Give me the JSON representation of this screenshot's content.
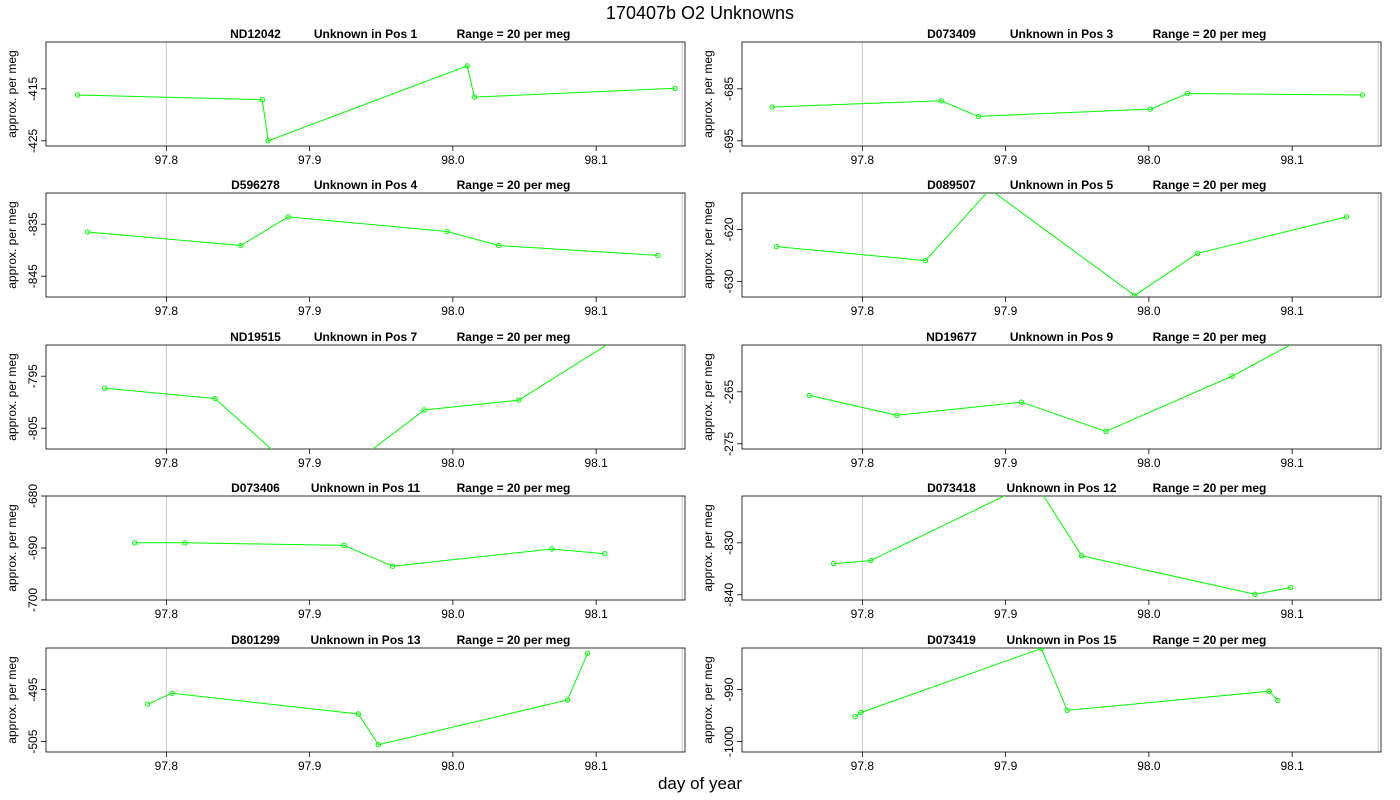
{
  "title": "170407b  O2 Unknowns",
  "xlabel": "day of year",
  "line_color": "#00ff00",
  "chart_data": [
    {
      "type": "line",
      "sample": "ND12042",
      "pos": "Unknown in Pos 1",
      "range": "Range = 20 per meg",
      "ylabel": "approx. per meg",
      "xlim": [
        97.716,
        98.162
      ],
      "ylim": [
        -426,
        -406
      ],
      "xticks": [
        "97.8",
        "97.9",
        "98.0",
        "98.1"
      ],
      "yticks": [
        "-415",
        "-425"
      ],
      "x": [
        97.738,
        97.867,
        97.871,
        98.01,
        98.015,
        98.155
      ],
      "y": [
        -416.2,
        -417.1,
        -425.0,
        -410.6,
        -416.6,
        -414.9
      ]
    },
    {
      "type": "line",
      "sample": "D073409",
      "pos": "Unknown in Pos 3",
      "range": "Range = 20 per meg",
      "ylabel": "approx. per meg",
      "xlim": [
        97.716,
        98.162
      ],
      "ylim": [
        -696,
        -676
      ],
      "xticks": [
        "97.8",
        "97.9",
        "98.0",
        "98.1"
      ],
      "yticks": [
        "-685",
        "-695"
      ],
      "x": [
        97.737,
        97.855,
        97.881,
        98.001,
        98.027,
        98.149
      ],
      "y": [
        -688.5,
        -687.3,
        -690.3,
        -688.9,
        -685.9,
        -686.2
      ]
    },
    {
      "type": "line",
      "sample": "D596278",
      "pos": "Unknown in Pos 4",
      "range": "Range = 20 per meg",
      "ylabel": "approx. per meg",
      "xlim": [
        97.716,
        98.162
      ],
      "ylim": [
        -849,
        -829
      ],
      "xticks": [
        "97.8",
        "97.9",
        "98.0",
        "98.1"
      ],
      "yticks": [
        "-835",
        "-845"
      ],
      "x": [
        97.745,
        97.852,
        97.885,
        97.996,
        98.032,
        98.143
      ],
      "y": [
        -836.5,
        -839.1,
        -833.6,
        -836.4,
        -839.1,
        -841.0
      ]
    },
    {
      "type": "line",
      "sample": "D089507",
      "pos": "Unknown in Pos 5",
      "range": "Range = 20 per meg",
      "ylabel": "approx. per meg",
      "xlim": [
        97.716,
        98.162
      ],
      "ylim": [
        -633,
        -613
      ],
      "xticks": [
        "97.8",
        "97.9",
        "98.0",
        "98.1"
      ],
      "yticks": [
        "-620",
        "-630"
      ],
      "x": [
        97.74,
        97.844,
        97.889,
        97.99,
        98.034,
        98.138
      ],
      "y": [
        -623.3,
        -626.0,
        -612.3,
        -632.7,
        -624.6,
        -617.6
      ]
    },
    {
      "type": "line",
      "sample": "ND19515",
      "pos": "Unknown in Pos 7",
      "range": "Range = 20 per meg",
      "ylabel": "approx. per meg",
      "xlim": [
        97.716,
        98.162
      ],
      "ylim": [
        -809,
        -789
      ],
      "xticks": [
        "97.8",
        "97.9",
        "98.0",
        "98.1"
      ],
      "yticks": [
        "-795",
        "-805"
      ],
      "x": [
        97.757,
        97.834,
        97.878,
        97.938,
        97.98,
        98.046,
        98.112
      ],
      "y": [
        -797.3,
        -799.3,
        -810.2,
        -810.3,
        -801.5,
        -799.6,
        -788.2
      ]
    },
    {
      "type": "line",
      "sample": "ND19677",
      "pos": "Unknown in Pos 9",
      "range": "Range = 20 per meg",
      "ylabel": "approx. per meg",
      "xlim": [
        97.716,
        98.162
      ],
      "ylim": [
        -276,
        -256
      ],
      "xticks": [
        "97.8",
        "97.9",
        "98.0",
        "98.1"
      ],
      "yticks": [
        "-265",
        "-275"
      ],
      "x": [
        97.763,
        97.824,
        97.911,
        97.97,
        98.058,
        98.104
      ],
      "y": [
        -265.7,
        -269.5,
        -267.0,
        -272.6,
        -262.0,
        -255.2
      ]
    },
    {
      "type": "line",
      "sample": "D073406",
      "pos": "Unknown in Pos 11",
      "range": "Range = 20 per meg",
      "ylabel": "approx. per meg",
      "xlim": [
        97.716,
        98.162
      ],
      "ylim": [
        -700,
        -680
      ],
      "xticks": [
        "97.8",
        "97.9",
        "98.0",
        "98.1"
      ],
      "yticks": [
        "-680",
        "-690",
        "-700"
      ],
      "x": [
        97.778,
        97.813,
        97.924,
        97.958,
        98.069,
        98.106
      ],
      "y": [
        -689.0,
        -689.0,
        -689.5,
        -693.5,
        -690.2,
        -691.1
      ]
    },
    {
      "type": "line",
      "sample": "D073418",
      "pos": "Unknown in Pos 12",
      "range": "Range = 20 per meg",
      "ylabel": "approx. per meg",
      "xlim": [
        97.716,
        98.162
      ],
      "ylim": [
        -841,
        -821
      ],
      "xticks": [
        "97.8",
        "97.9",
        "98.0",
        "98.1"
      ],
      "yticks": [
        "-830",
        "-840"
      ],
      "x": [
        97.78,
        97.806,
        97.905,
        97.925,
        97.953,
        98.074,
        98.099
      ],
      "y": [
        -834.0,
        -833.4,
        -820.2,
        -820.3,
        -832.5,
        -839.9,
        -838.6
      ]
    },
    {
      "type": "line",
      "sample": "D801299",
      "pos": "Unknown in Pos 13",
      "range": "Range = 20 per meg",
      "ylabel": "approx. per meg",
      "xlim": [
        97.716,
        98.162
      ],
      "ylim": [
        -507,
        -487
      ],
      "xticks": [
        "97.8",
        "97.9",
        "98.0",
        "98.1"
      ],
      "yticks": [
        "-495",
        "-505"
      ],
      "x": [
        97.787,
        97.804,
        97.934,
        97.948,
        98.08,
        98.094
      ],
      "y": [
        -497.8,
        -495.7,
        -499.7,
        -505.6,
        -497.0,
        -488.0
      ]
    },
    {
      "type": "line",
      "sample": "D073419",
      "pos": "Unknown in Pos 15",
      "range": "Range = 20 per meg",
      "ylabel": "approx. per meg",
      "xlim": [
        97.716,
        98.162
      ],
      "ylim": [
        -1002,
        -982
      ],
      "xticks": [
        "97.8",
        "97.9",
        "98.0",
        "98.1"
      ],
      "yticks": [
        "-990",
        "-1000"
      ],
      "x": [
        97.795,
        97.799,
        97.925,
        97.943,
        98.084,
        98.09
      ],
      "y": [
        -995.2,
        -994.4,
        -982.1,
        -994.0,
        -990.3,
        -992.1
      ]
    }
  ]
}
